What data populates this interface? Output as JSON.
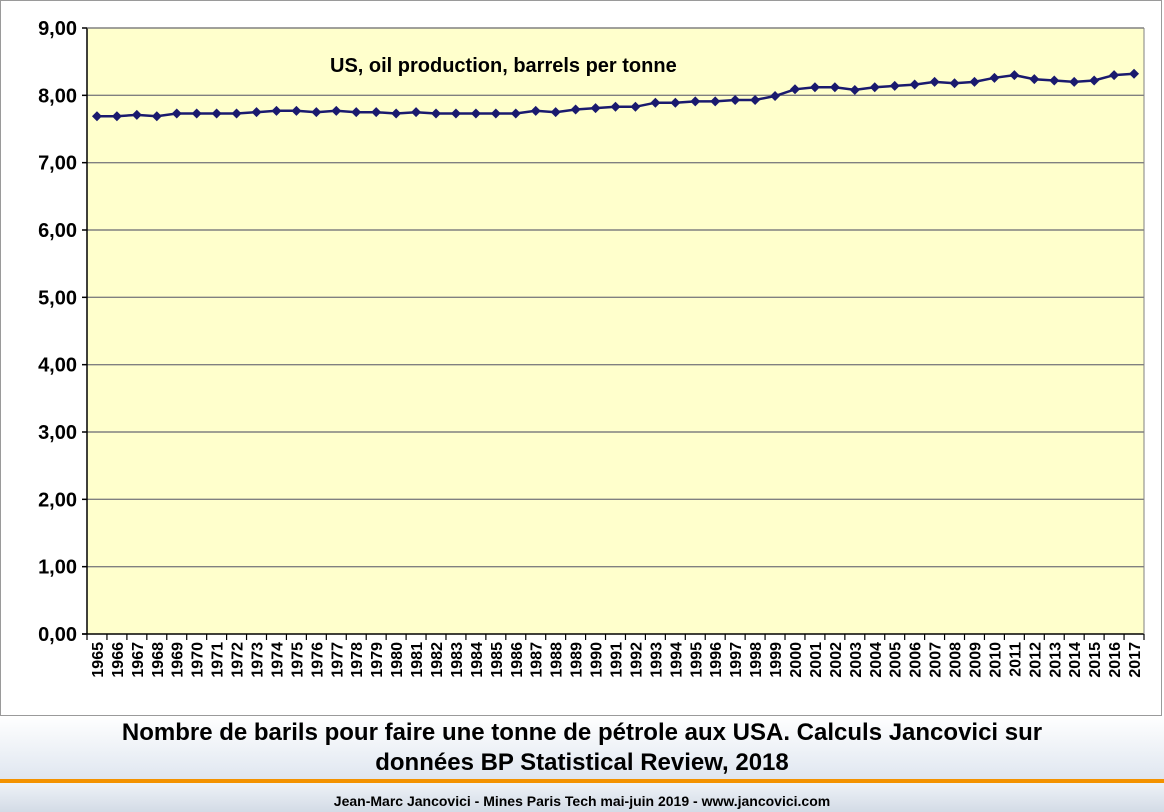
{
  "chart_data": {
    "type": "line",
    "annotation": "US, oil production, barrels per tonne",
    "xlabel": "",
    "ylabel": "",
    "ylim": [
      0,
      9
    ],
    "yticks": [
      "0,00",
      "1,00",
      "2,00",
      "3,00",
      "4,00",
      "5,00",
      "6,00",
      "7,00",
      "8,00",
      "9,00"
    ],
    "grid": true,
    "legend": "none",
    "colors": {
      "line": "#1a1a6e",
      "plot_background": "#ffffcc",
      "gridline": "#808080"
    },
    "categories": [
      "1965",
      "1966",
      "1967",
      "1968",
      "1969",
      "1970",
      "1971",
      "1972",
      "1973",
      "1974",
      "1975",
      "1976",
      "1977",
      "1978",
      "1979",
      "1980",
      "1981",
      "1982",
      "1983",
      "1984",
      "1985",
      "1986",
      "1987",
      "1988",
      "1989",
      "1990",
      "1991",
      "1992",
      "1993",
      "1994",
      "1995",
      "1996",
      "1997",
      "1998",
      "1999",
      "2000",
      "2001",
      "2002",
      "2003",
      "2004",
      "2005",
      "2006",
      "2007",
      "2008",
      "2009",
      "2010",
      "2011",
      "2012",
      "2013",
      "2014",
      "2015",
      "2016",
      "2017"
    ],
    "series": [
      {
        "values": [
          7.69,
          7.69,
          7.71,
          7.69,
          7.73,
          7.73,
          7.73,
          7.73,
          7.75,
          7.77,
          7.77,
          7.75,
          7.77,
          7.75,
          7.75,
          7.73,
          7.75,
          7.73,
          7.73,
          7.73,
          7.73,
          7.73,
          7.77,
          7.75,
          7.79,
          7.81,
          7.83,
          7.83,
          7.89,
          7.89,
          7.91,
          7.91,
          7.93,
          7.93,
          7.99,
          8.09,
          8.12,
          8.12,
          8.08,
          8.12,
          8.14,
          8.16,
          8.2,
          8.18,
          8.2,
          8.26,
          8.3,
          8.24,
          8.22,
          8.2,
          8.22,
          8.3,
          8.32
        ]
      }
    ]
  },
  "caption": {
    "line1": "Nombre de barils pour faire une tonne de pétrole aux USA. Calculs Jancovici sur",
    "line2": "données BP Statistical Review, 2018"
  },
  "footer": "Jean-Marc Jancovici - Mines Paris Tech mai-juin 2019 - www.jancovici.com"
}
